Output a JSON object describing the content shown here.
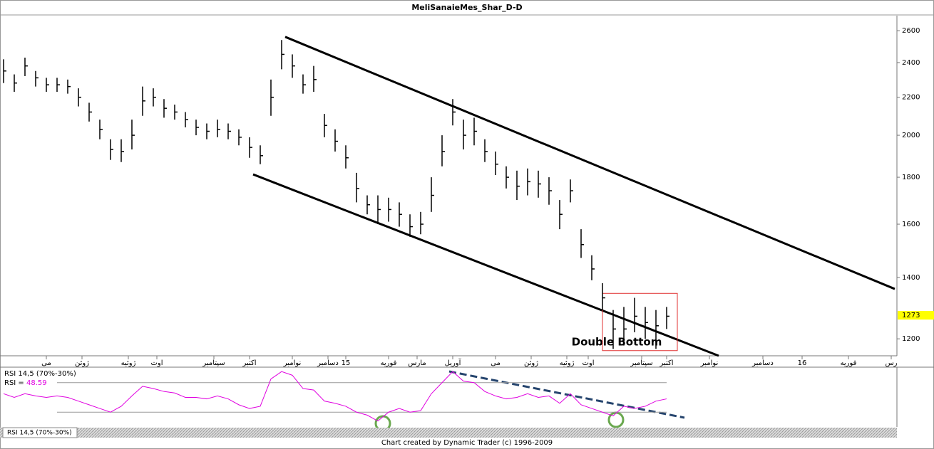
{
  "chart_data": [
    {
      "type": "ohlc",
      "title": "MeliSanaieMes_Shar_D-D",
      "log_scale": true,
      "x": [
        1,
        4,
        7,
        10,
        13,
        16,
        19,
        22,
        25,
        28,
        31,
        34,
        37,
        40,
        43,
        46,
        49,
        52,
        55,
        58,
        61,
        64,
        67,
        70,
        73,
        76,
        79,
        82,
        85,
        88,
        91,
        94,
        97,
        100,
        103,
        106,
        109,
        112,
        115,
        118,
        121,
        124,
        127,
        130,
        133,
        136,
        139,
        142,
        145,
        148,
        151,
        154,
        157,
        160,
        163,
        166,
        169,
        172,
        175,
        178,
        181,
        184,
        187
      ],
      "high": [
        2420,
        2330,
        2430,
        2350,
        2310,
        2310,
        2300,
        2250,
        2170,
        2080,
        1980,
        1980,
        2080,
        2260,
        2250,
        2190,
        2160,
        2120,
        2080,
        2060,
        2080,
        2060,
        2030,
        1990,
        1950,
        2300,
        2540,
        2450,
        2330,
        2380,
        2110,
        2030,
        1950,
        1820,
        1720,
        1720,
        1710,
        1690,
        1640,
        1650,
        1800,
        2000,
        2190,
        2080,
        2090,
        1980,
        1920,
        1850,
        1830,
        1840,
        1830,
        1800,
        1700,
        1790,
        1580,
        1480,
        1380,
        1290,
        1300,
        1330,
        1300,
        1290,
        1300
      ],
      "low": [
        2280,
        2230,
        2320,
        2260,
        2230,
        2230,
        2220,
        2150,
        2070,
        1980,
        1880,
        1870,
        1930,
        2100,
        2150,
        2090,
        2080,
        2040,
        2000,
        1980,
        1990,
        1980,
        1950,
        1890,
        1860,
        2100,
        2360,
        2310,
        2220,
        2230,
        1990,
        1920,
        1840,
        1690,
        1640,
        1600,
        1610,
        1590,
        1550,
        1560,
        1650,
        1850,
        2050,
        1930,
        1950,
        1870,
        1810,
        1750,
        1700,
        1720,
        1710,
        1680,
        1580,
        1690,
        1470,
        1390,
        1290,
        1170,
        1180,
        1220,
        1200,
        1170,
        1230
      ],
      "close": [
        2350,
        2280,
        2380,
        2310,
        2270,
        2270,
        2260,
        2200,
        2120,
        2030,
        1930,
        1920,
        2000,
        2180,
        2200,
        2140,
        2120,
        2080,
        2040,
        2020,
        2030,
        2020,
        1990,
        1940,
        1900,
        2200,
        2450,
        2380,
        2270,
        2300,
        2050,
        1970,
        1890,
        1750,
        1680,
        1660,
        1660,
        1640,
        1590,
        1600,
        1720,
        1920,
        2120,
        2000,
        2020,
        1920,
        1860,
        1800,
        1760,
        1780,
        1770,
        1740,
        1640,
        1740,
        1520,
        1430,
        1330,
        1230,
        1230,
        1270,
        1250,
        1240,
        1270
      ],
      "color": "#000000",
      "xlim": [
        0,
        251
      ],
      "ylim": [
        1150,
        2700
      ],
      "yticks": [
        1200,
        1400,
        1600,
        1800,
        2000,
        2200,
        2400,
        2600
      ],
      "xticks": [
        {
          "value": 13,
          "label": "مى"
        },
        {
          "value": 23,
          "label": "ژوئن"
        },
        {
          "value": 36,
          "label": "ژوئيه"
        },
        {
          "value": 44,
          "label": "اوت"
        },
        {
          "value": 60,
          "label": "سپتامبر"
        },
        {
          "value": 70,
          "label": "اكتبر"
        },
        {
          "value": 82,
          "label": "نوامبر"
        },
        {
          "value": 92,
          "label": "دسامبر"
        },
        {
          "value": 97,
          "label": "15"
        },
        {
          "value": 109,
          "label": "فوريه"
        },
        {
          "value": 117,
          "label": "مارس"
        },
        {
          "value": 127,
          "label": "آوريل"
        },
        {
          "value": 139,
          "label": "مى"
        },
        {
          "value": 149,
          "label": "ژوئن"
        },
        {
          "value": 159,
          "label": "ژوئيه"
        },
        {
          "value": 165,
          "label": "اوت"
        },
        {
          "value": 180,
          "label": "سپتامبر"
        },
        {
          "value": 187,
          "label": "اكتبر"
        },
        {
          "value": 199,
          "label": "نوامبر"
        },
        {
          "value": 214,
          "label": "دسامبر"
        },
        {
          "value": 225,
          "label": "16"
        },
        {
          "value": 238,
          "label": "فوريه"
        },
        {
          "value": 250,
          "label": "رس"
        }
      ],
      "last_price": 1273,
      "last_price_color": "#ffff00",
      "trendlines": [
        {
          "x": [
            80,
            251
          ],
          "y": [
            2560,
            1360
          ]
        },
        {
          "x": [
            71,
            201.6
          ],
          "y": [
            1813,
            1150
          ]
        }
      ],
      "highlight": {
        "x": [
          169,
          190
        ],
        "y": [
          1165,
          1345
        ],
        "color": "#e03030"
      },
      "annotation": "Double Bottom"
    },
    {
      "type": "line",
      "title": "RSI 14,5 (70%-30%)",
      "value_prefix": "RSI =",
      "current": 48.59,
      "color": "#e000e0",
      "ylim": [
        10,
        89
      ],
      "levels": [
        70,
        30
      ],
      "x": [
        1,
        4,
        7,
        10,
        13,
        16,
        19,
        22,
        25,
        28,
        31,
        34,
        37,
        40,
        43,
        46,
        49,
        52,
        55,
        58,
        61,
        64,
        67,
        70,
        73,
        76,
        79,
        82,
        85,
        88,
        91,
        94,
        97,
        100,
        103,
        106,
        109,
        112,
        115,
        118,
        121,
        124,
        127,
        130,
        133,
        136,
        139,
        142,
        145,
        148,
        151,
        154,
        157,
        160,
        163,
        166,
        169,
        172,
        175,
        178,
        181,
        184,
        187
      ],
      "values": [
        55,
        50,
        55,
        52,
        50,
        52,
        50,
        45,
        40,
        35,
        30,
        38,
        52,
        65,
        62,
        58,
        56,
        50,
        50,
        48,
        52,
        48,
        40,
        35,
        38,
        75,
        85,
        80,
        62,
        60,
        45,
        42,
        38,
        30,
        26,
        18,
        30,
        35,
        30,
        32,
        55,
        70,
        85,
        72,
        70,
        58,
        52,
        48,
        50,
        55,
        50,
        52,
        42,
        55,
        40,
        35,
        30,
        25,
        38,
        35,
        38,
        45,
        48
      ]
    }
  ],
  "tab": "RSI 14,5 (70%-30%)",
  "footer": "Chart created by Dynamic Trader  (c) 1996-2009"
}
